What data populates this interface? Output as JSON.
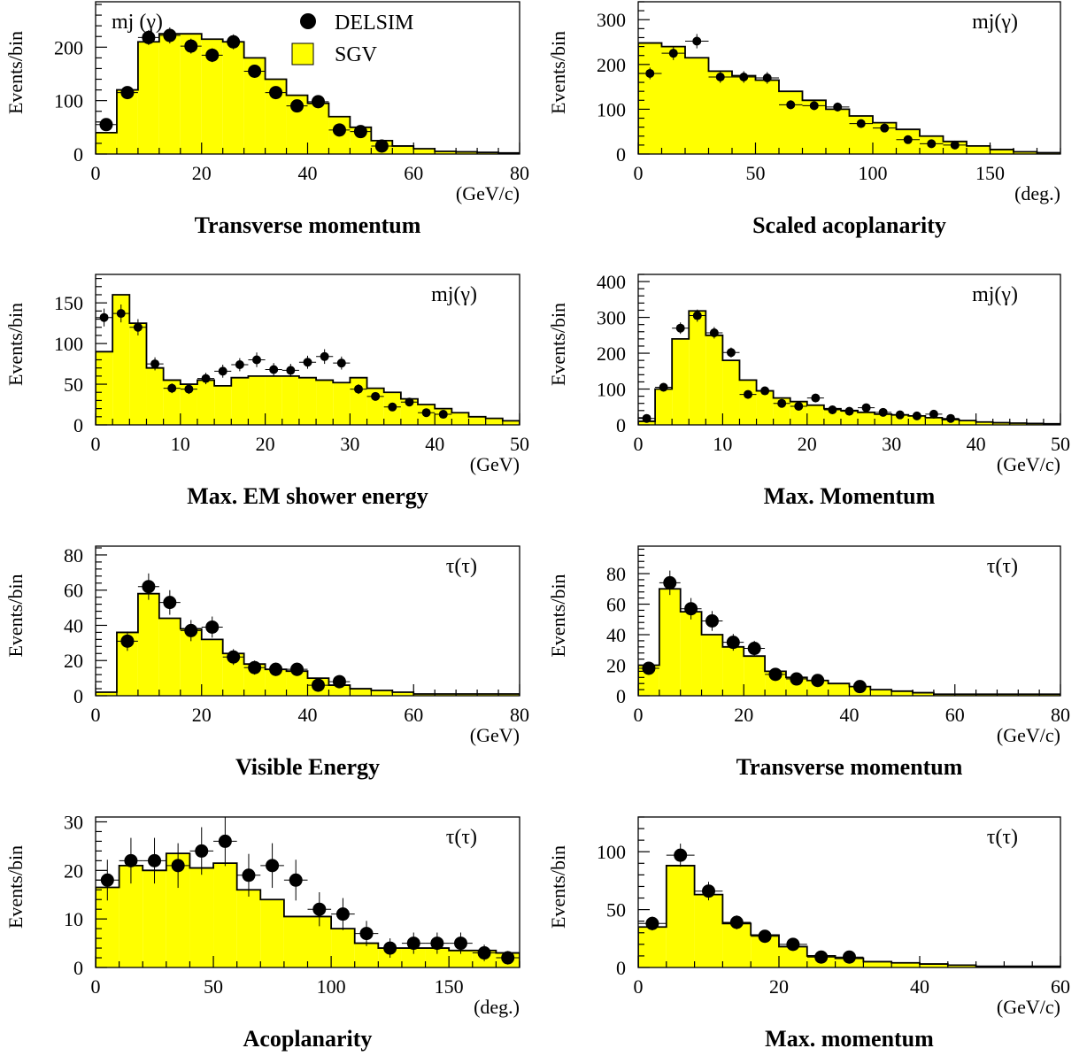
{
  "figure": {
    "legend": {
      "data_label": "DELSIM",
      "mc_label": "SGV"
    },
    "colors": {
      "mc_fill": "#ffff00",
      "outline": "#000000",
      "points": "#000000"
    }
  },
  "chart_data": [
    {
      "type": "bar",
      "title": "Transverse momentum",
      "unit": "(GeV/c)",
      "ylabel": "Events/bin",
      "tag": "mj (γ)",
      "show_legend": true,
      "xlim": [
        0,
        80
      ],
      "ylim": [
        0,
        285
      ],
      "xticks": [
        0,
        20,
        40,
        60,
        80
      ],
      "yticks": [
        0,
        100,
        200
      ],
      "bin_edges": [
        0,
        4,
        8,
        12,
        16,
        20,
        24,
        28,
        32,
        36,
        40,
        44,
        48,
        52,
        56,
        60,
        64,
        68,
        72,
        76,
        80
      ],
      "mc_values": [
        40,
        120,
        210,
        225,
        225,
        215,
        210,
        180,
        140,
        110,
        95,
        70,
        50,
        25,
        15,
        10,
        5,
        4,
        3,
        2
      ],
      "point_marker_size": "large",
      "points_x": [
        2,
        6,
        10,
        14,
        18,
        22,
        26,
        30,
        34,
        38,
        42,
        46,
        50,
        54
      ],
      "points_y": [
        55,
        115,
        218,
        222,
        202,
        185,
        210,
        155,
        115,
        90,
        98,
        45,
        42,
        15
      ],
      "points_xerr": [
        2,
        2,
        2,
        2,
        2,
        2,
        2,
        2,
        2,
        2,
        2,
        2,
        2,
        2
      ],
      "points_yerr": [
        8,
        10,
        14,
        15,
        14,
        13,
        14,
        12,
        10,
        9,
        9,
        7,
        6,
        4
      ]
    },
    {
      "type": "bar",
      "title": "Scaled acoplanarity",
      "unit": "(deg.)",
      "ylabel": "Events/bin",
      "tag": "mj(γ)",
      "show_legend": false,
      "xlim": [
        0,
        180
      ],
      "ylim": [
        0,
        340
      ],
      "xticks": [
        0,
        50,
        100,
        150
      ],
      "yticks": [
        0,
        100,
        200,
        300
      ],
      "bin_edges": [
        0,
        10,
        20,
        30,
        40,
        50,
        60,
        70,
        80,
        90,
        100,
        110,
        120,
        130,
        140,
        150,
        160,
        170,
        180
      ],
      "mc_values": [
        248,
        240,
        215,
        185,
        175,
        165,
        140,
        120,
        100,
        85,
        70,
        55,
        40,
        28,
        18,
        10,
        5,
        3
      ],
      "point_marker_size": "small",
      "points_x": [
        5,
        15,
        25,
        35,
        45,
        55,
        65,
        75,
        85,
        95,
        105,
        115,
        125,
        135
      ],
      "points_y": [
        180,
        225,
        252,
        172,
        172,
        170,
        110,
        108,
        105,
        68,
        58,
        32,
        23,
        20
      ],
      "points_xerr": [
        5,
        5,
        5,
        5,
        5,
        5,
        5,
        5,
        5,
        5,
        5,
        5,
        5,
        5
      ],
      "points_yerr": [
        13,
        15,
        16,
        13,
        13,
        13,
        10,
        10,
        10,
        8,
        8,
        6,
        5,
        4
      ]
    },
    {
      "type": "bar",
      "title": "Max. EM shower energy",
      "unit": "(GeV)",
      "ylabel": "Events/bin",
      "tag": "mj(γ)",
      "show_legend": false,
      "xlim": [
        0,
        50
      ],
      "ylim": [
        0,
        185
      ],
      "xticks": [
        0,
        10,
        20,
        30,
        40,
        50
      ],
      "yticks": [
        0,
        50,
        100,
        150
      ],
      "bin_edges": [
        0,
        2,
        4,
        6,
        8,
        10,
        12,
        14,
        16,
        18,
        20,
        22,
        24,
        26,
        28,
        30,
        32,
        34,
        36,
        38,
        40,
        42,
        44,
        46,
        48,
        50
      ],
      "mc_values": [
        90,
        160,
        125,
        70,
        55,
        50,
        55,
        48,
        58,
        60,
        60,
        60,
        58,
        55,
        52,
        58,
        45,
        40,
        32,
        25,
        20,
        15,
        10,
        8,
        5
      ],
      "point_marker_size": "small",
      "points_x": [
        1,
        3,
        5,
        7,
        9,
        11,
        13,
        15,
        17,
        19,
        21,
        23,
        25,
        27,
        29,
        31,
        33,
        35,
        37,
        39,
        41
      ],
      "points_y": [
        132,
        137,
        120,
        75,
        45,
        44,
        57,
        66,
        74,
        80,
        68,
        67,
        77,
        84,
        76,
        44,
        35,
        22,
        28,
        15,
        13
      ],
      "points_xerr": [
        1,
        1,
        1,
        1,
        1,
        1,
        1,
        1,
        1,
        1,
        1,
        1,
        1,
        1,
        1,
        1,
        1,
        1,
        1,
        1,
        1
      ],
      "points_yerr": [
        11,
        11,
        10,
        8,
        6,
        6,
        7,
        8,
        8,
        9,
        8,
        8,
        8,
        9,
        8,
        6,
        5,
        4,
        5,
        3,
        3
      ]
    },
    {
      "type": "bar",
      "title": "Max. Momentum",
      "unit": "(GeV/c)",
      "ylabel": "Events/bin",
      "tag": "mj(γ)",
      "show_legend": false,
      "xlim": [
        0,
        50
      ],
      "ylim": [
        0,
        420
      ],
      "xticks": [
        0,
        10,
        20,
        30,
        40,
        50
      ],
      "yticks": [
        0,
        100,
        200,
        300,
        400
      ],
      "bin_edges": [
        0,
        2,
        4,
        6,
        8,
        10,
        12,
        14,
        16,
        18,
        20,
        22,
        24,
        26,
        28,
        30,
        32,
        34,
        36,
        38,
        40,
        42,
        44,
        46,
        48,
        50
      ],
      "mc_values": [
        10,
        100,
        240,
        318,
        250,
        180,
        125,
        95,
        75,
        65,
        55,
        45,
        40,
        35,
        30,
        28,
        25,
        20,
        15,
        12,
        8,
        6,
        5,
        4,
        3
      ],
      "point_marker_size": "small",
      "points_x": [
        1,
        3,
        5,
        7,
        9,
        11,
        13,
        15,
        17,
        19,
        21,
        23,
        25,
        27,
        29,
        31,
        33,
        35,
        37
      ],
      "points_y": [
        18,
        105,
        270,
        305,
        257,
        202,
        85,
        95,
        60,
        52,
        75,
        42,
        38,
        48,
        35,
        28,
        25,
        30,
        18
      ],
      "points_xerr": [
        1,
        1,
        1,
        1,
        1,
        1,
        1,
        1,
        1,
        1,
        1,
        1,
        1,
        1,
        1,
        1,
        1,
        1,
        1
      ],
      "points_yerr": [
        5,
        10,
        16,
        17,
        16,
        14,
        9,
        10,
        8,
        7,
        9,
        6,
        6,
        7,
        6,
        5,
        5,
        5,
        4
      ]
    },
    {
      "type": "bar",
      "title": "Visible Energy",
      "unit": "(GeV)",
      "ylabel": "Events/bin",
      "tag": "τ(τ)",
      "show_legend": false,
      "xlim": [
        0,
        80
      ],
      "ylim": [
        0,
        85
      ],
      "xticks": [
        0,
        20,
        40,
        60,
        80
      ],
      "yticks": [
        0,
        20,
        40,
        60,
        80
      ],
      "bin_edges": [
        0,
        4,
        8,
        12,
        16,
        20,
        24,
        28,
        32,
        36,
        40,
        44,
        48,
        52,
        56,
        60,
        64,
        68,
        72,
        76,
        80
      ],
      "mc_values": [
        2,
        36,
        58,
        44,
        38,
        32,
        24,
        18,
        15,
        14,
        10,
        6,
        4,
        3,
        2,
        1,
        1,
        1,
        1,
        1
      ],
      "point_marker_size": "large",
      "points_x": [
        6,
        10,
        14,
        18,
        22,
        26,
        30,
        34,
        38,
        42,
        46
      ],
      "points_y": [
        31,
        62,
        53,
        37,
        39,
        22,
        16,
        15,
        15,
        6,
        8
      ],
      "points_xerr": [
        2,
        2,
        2,
        2,
        2,
        2,
        2,
        2,
        2,
        2,
        2
      ],
      "points_yerr": [
        5.5,
        7.5,
        7,
        6,
        6,
        4.5,
        4,
        3.8,
        3.8,
        2.5,
        2.8
      ]
    },
    {
      "type": "bar",
      "title": "Transverse momentum",
      "unit": "(GeV/c)",
      "ylabel": "Events/bin",
      "tag": "τ(τ)",
      "show_legend": false,
      "xlim": [
        0,
        80
      ],
      "ylim": [
        0,
        98
      ],
      "xticks": [
        0,
        20,
        40,
        60,
        80
      ],
      "yticks": [
        0,
        20,
        40,
        60,
        80
      ],
      "bin_edges": [
        0,
        4,
        8,
        12,
        16,
        20,
        24,
        28,
        32,
        36,
        40,
        44,
        48,
        52,
        56,
        60,
        64,
        68,
        72,
        76,
        80
      ],
      "mc_values": [
        20,
        70,
        55,
        40,
        32,
        26,
        16,
        12,
        10,
        8,
        6,
        4,
        3,
        2,
        1,
        1,
        1,
        1,
        1,
        1
      ],
      "point_marker_size": "large",
      "points_x": [
        2,
        6,
        10,
        14,
        18,
        22,
        26,
        30,
        34,
        42
      ],
      "points_y": [
        18,
        74,
        57,
        49,
        35,
        31,
        14,
        11,
        10,
        6
      ],
      "points_xerr": [
        2,
        2,
        2,
        2,
        2,
        2,
        2,
        2,
        2,
        2
      ],
      "points_yerr": [
        4,
        8,
        7,
        6.5,
        5.5,
        5,
        3.5,
        3,
        3,
        2.5
      ]
    },
    {
      "type": "bar",
      "title": "Acoplanarity",
      "unit": "(deg.)",
      "ylabel": "Events/bin",
      "tag": "τ(τ)",
      "show_legend": false,
      "xlim": [
        0,
        180
      ],
      "ylim": [
        0,
        31
      ],
      "xticks": [
        0,
        50,
        100,
        150
      ],
      "yticks": [
        0,
        10,
        20,
        30
      ],
      "bin_edges": [
        0,
        10,
        20,
        30,
        40,
        50,
        60,
        70,
        80,
        90,
        100,
        110,
        120,
        130,
        140,
        150,
        160,
        170,
        180
      ],
      "mc_values": [
        16.5,
        21,
        20,
        23.5,
        20.5,
        21.5,
        16,
        14,
        10.5,
        10.5,
        8,
        5,
        4,
        4,
        4,
        3.5,
        3.5,
        3
      ],
      "point_marker_size": "large",
      "points_x": [
        5,
        15,
        25,
        35,
        45,
        55,
        65,
        75,
        85,
        95,
        105,
        115,
        125,
        135,
        145,
        155,
        165,
        175
      ],
      "points_y": [
        18,
        22,
        22,
        21,
        24,
        26,
        19,
        21,
        18,
        12,
        11,
        7,
        4,
        5,
        5,
        5,
        3,
        2
      ],
      "points_xerr": [
        5,
        5,
        5,
        5,
        5,
        5,
        5,
        5,
        5,
        5,
        5,
        5,
        5,
        5,
        5,
        5,
        5,
        5
      ],
      "points_yerr": [
        4.2,
        4.7,
        4.7,
        4.6,
        4.9,
        5.1,
        4.4,
        4.6,
        4.2,
        3.5,
        3.3,
        2.6,
        2,
        2.2,
        2.2,
        2.2,
        1.7,
        1.4
      ]
    },
    {
      "type": "bar",
      "title": "Max. momentum",
      "unit": "(GeV/c)",
      "ylabel": "Events/bin",
      "tag": "τ(τ)",
      "show_legend": false,
      "xlim": [
        0,
        60
      ],
      "ylim": [
        0,
        130
      ],
      "xticks": [
        0,
        20,
        40,
        60
      ],
      "yticks": [
        0,
        50,
        100
      ],
      "bin_edges": [
        0,
        4,
        8,
        12,
        16,
        20,
        24,
        28,
        32,
        36,
        40,
        44,
        48,
        52,
        56,
        60
      ],
      "mc_values": [
        35,
        88,
        63,
        38,
        28,
        18,
        10,
        8,
        5,
        4,
        3,
        2,
        1,
        1,
        1
      ],
      "point_marker_size": "large",
      "points_x": [
        2,
        6,
        10,
        14,
        18,
        22,
        26,
        30
      ],
      "points_y": [
        38,
        97,
        66,
        39,
        27,
        20,
        9,
        9
      ],
      "points_xerr": [
        2,
        2,
        2,
        2,
        2,
        2,
        2,
        2
      ],
      "points_yerr": [
        6,
        10,
        8,
        6,
        5,
        4.5,
        3,
        3
      ]
    }
  ]
}
